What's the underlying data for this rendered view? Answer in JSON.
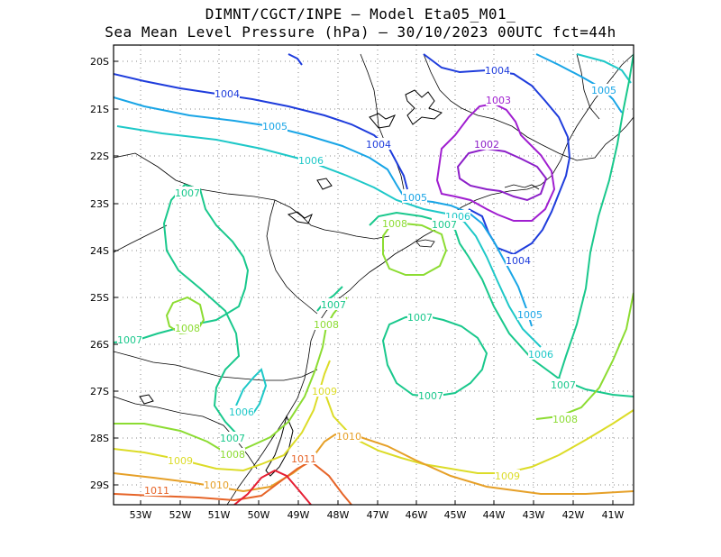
{
  "header": {
    "line1": "DIMNT/CGCT/INPE –  Model Eta05_M01_",
    "line2": "Sea Mean Level Pressure (hPa) – 30/10/2023 00UTC fct=44h"
  },
  "axes": {
    "lat_labels": [
      "20S",
      "21S",
      "22S",
      "23S",
      "24S",
      "25S",
      "26S",
      "27S",
      "28S",
      "29S"
    ],
    "lon_labels": [
      "53W",
      "52W",
      "51W",
      "50W",
      "49W",
      "48W",
      "47W",
      "46W",
      "45W",
      "44W",
      "43W",
      "42W",
      "41W"
    ]
  },
  "colors": {
    "c1002": "#8c1fc8",
    "c1003": "#a01ed0",
    "c1004": "#1e3cdc",
    "c1005": "#19a5e6",
    "c1006": "#1ec8c8",
    "c1007": "#19c88c",
    "c1008": "#8cdc32",
    "c1009": "#dcdc28",
    "c1010": "#e6a028",
    "c1011": "#e66428",
    "c1012": "#e61e32",
    "coast": "#000000",
    "grid": "#888888"
  },
  "contour_labels": [
    {
      "text": "1004",
      "level": "c1004"
    },
    {
      "text": "1004",
      "level": "c1004"
    },
    {
      "text": "1004",
      "level": "c1004"
    },
    {
      "text": "1004",
      "level": "c1004"
    },
    {
      "text": "1003",
      "level": "c1003"
    },
    {
      "text": "1002",
      "level": "c1002"
    },
    {
      "text": "1005",
      "level": "c1005"
    },
    {
      "text": "1005",
      "level": "c1005"
    },
    {
      "text": "1005",
      "level": "c1005"
    },
    {
      "text": "1005",
      "level": "c1005"
    },
    {
      "text": "1006",
      "level": "c1006"
    },
    {
      "text": "1006",
      "level": "c1006"
    },
    {
      "text": "1006",
      "level": "c1006"
    },
    {
      "text": "1006",
      "level": "c1006"
    },
    {
      "text": "1007",
      "level": "c1007"
    },
    {
      "text": "1007",
      "level": "c1007"
    },
    {
      "text": "1007",
      "level": "c1007"
    },
    {
      "text": "1007",
      "level": "c1007"
    },
    {
      "text": "1007",
      "level": "c1007"
    },
    {
      "text": "1007",
      "level": "c1007"
    },
    {
      "text": "1007",
      "level": "c1007"
    },
    {
      "text": "1007",
      "level": "c1007"
    },
    {
      "text": "1008",
      "level": "c1008"
    },
    {
      "text": "1008",
      "level": "c1008"
    },
    {
      "text": "1008",
      "level": "c1008"
    },
    {
      "text": "1008",
      "level": "c1008"
    },
    {
      "text": "1008",
      "level": "c1008"
    },
    {
      "text": "1009",
      "level": "c1009"
    },
    {
      "text": "1009",
      "level": "c1009"
    },
    {
      "text": "1009",
      "level": "c1009"
    },
    {
      "text": "1010",
      "level": "c1010"
    },
    {
      "text": "1010",
      "level": "c1010"
    },
    {
      "text": "1011",
      "level": "c1011"
    },
    {
      "text": "1011",
      "level": "c1011"
    }
  ]
}
